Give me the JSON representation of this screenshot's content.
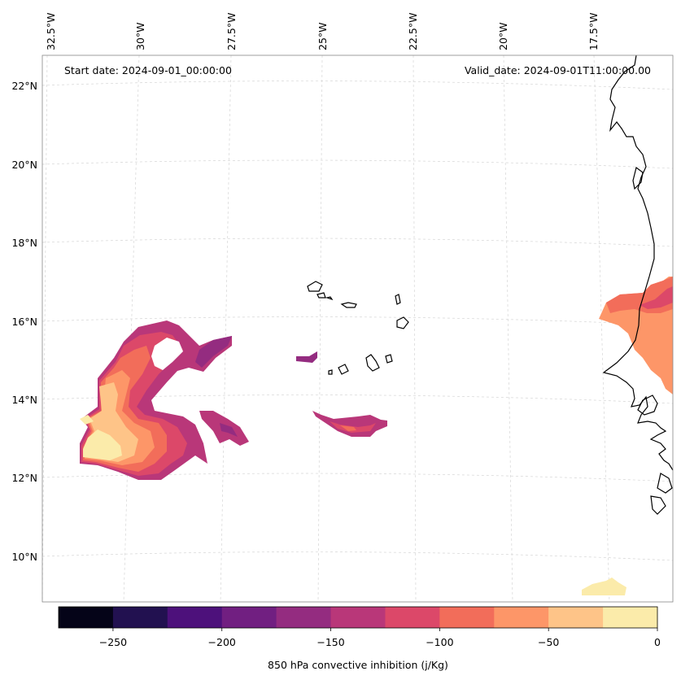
{
  "header": {
    "start_date": "Start date: 2024-09-01_00:00:00",
    "valid_date": "Valid_date: 2024-09-01T11:00:00.00"
  },
  "longitude_labels": [
    "32.5°W",
    "30°W",
    "27.5°W",
    "25°W",
    "22.5°W",
    "20°W",
    "17.5°W"
  ],
  "latitude_labels": [
    "22°N",
    "20°N",
    "18°N",
    "16°N",
    "14°N",
    "12°N",
    "10°N"
  ],
  "colorbar": {
    "label": "850 hPa convective inhibition (j/Kg)",
    "ticks": [
      "−250",
      "−200",
      "−150",
      "−100",
      "−50",
      "0"
    ],
    "min": -275,
    "max": 0,
    "step": 25,
    "colors": [
      "#050418",
      "#221150",
      "#4d117b",
      "#711f81",
      "#942c80",
      "#b93779",
      "#dc4869",
      "#f26d5a",
      "#fd9668",
      "#fec488",
      "#fbebaa"
    ]
  },
  "colors": {
    "coastline": "#000000",
    "gridline": "#cccccc",
    "frame": "#888888"
  }
}
